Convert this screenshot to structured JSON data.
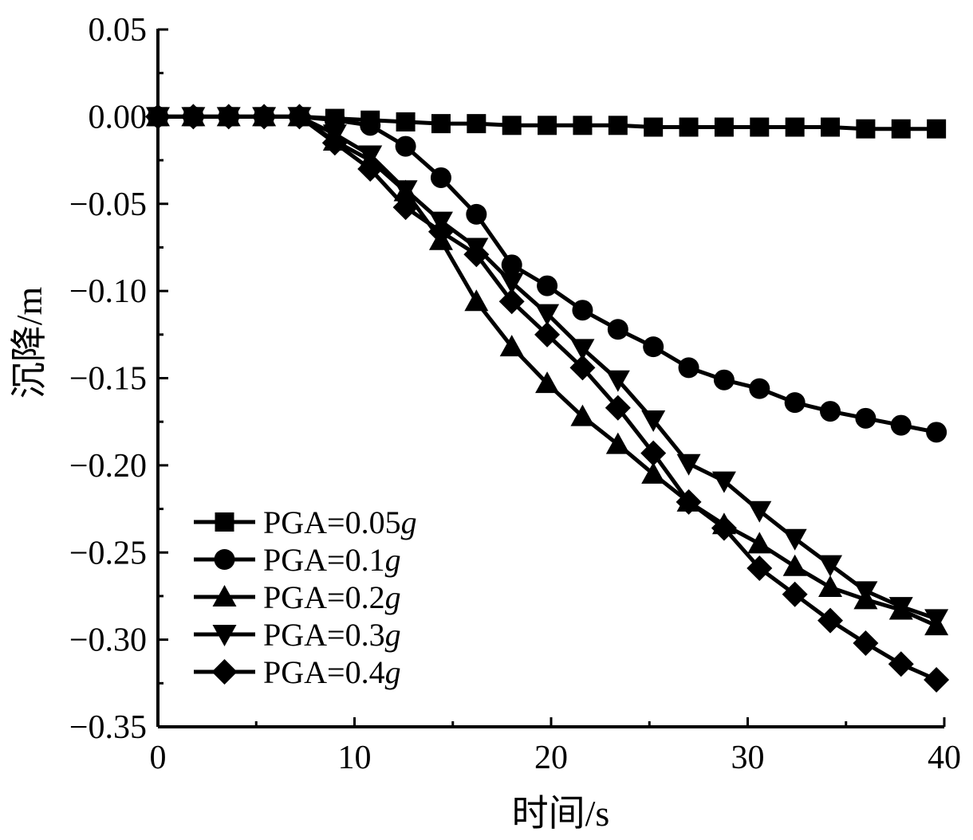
{
  "chart_data": {
    "type": "line",
    "title": "",
    "xlabel": "时间/s",
    "ylabel": "沉降/m",
    "xlim": [
      0,
      40
    ],
    "ylim": [
      -0.35,
      0.05
    ],
    "x_ticks": [
      0,
      10,
      20,
      30,
      40
    ],
    "x_tick_labels": [
      "0",
      "10",
      "20",
      "30",
      "40"
    ],
    "y_ticks": [
      0.05,
      0.0,
      -0.05,
      -0.1,
      -0.15,
      -0.2,
      -0.25,
      -0.3,
      -0.35
    ],
    "y_tick_labels": [
      "0.05",
      "0.00",
      "−0.05",
      "−0.10",
      "−0.15",
      "−0.20",
      "−0.25",
      "−0.30",
      "−0.35"
    ],
    "grid": false,
    "legend_position": "bottom-left",
    "line_color": "#000000",
    "series": [
      {
        "name": "PGA=0.05",
        "name_suffix": "g",
        "marker": "square",
        "x": [
          0,
          1.8,
          3.6,
          5.4,
          7.2,
          9.0,
          10.8,
          12.6,
          14.4,
          16.2,
          18.0,
          19.8,
          21.6,
          23.4,
          25.2,
          27.0,
          28.8,
          30.6,
          32.4,
          34.2,
          36.0,
          37.8,
          39.6
        ],
        "y": [
          0.0,
          0.0,
          0.0,
          0.0,
          0.0,
          -0.001,
          -0.002,
          -0.003,
          -0.004,
          -0.004,
          -0.005,
          -0.005,
          -0.005,
          -0.005,
          -0.006,
          -0.006,
          -0.006,
          -0.006,
          -0.006,
          -0.006,
          -0.007,
          -0.007,
          -0.007
        ]
      },
      {
        "name": "PGA=0.1",
        "name_suffix": "g",
        "marker": "circle",
        "x": [
          0,
          1.8,
          3.6,
          5.4,
          7.2,
          9.0,
          10.8,
          12.6,
          14.4,
          16.2,
          18.0,
          19.8,
          21.6,
          23.4,
          25.2,
          27.0,
          28.8,
          30.6,
          32.4,
          34.2,
          36.0,
          37.8,
          39.6
        ],
        "y": [
          0.0,
          0.0,
          0.0,
          0.0,
          0.0,
          -0.002,
          -0.005,
          -0.017,
          -0.035,
          -0.056,
          -0.085,
          -0.097,
          -0.111,
          -0.122,
          -0.132,
          -0.144,
          -0.151,
          -0.156,
          -0.164,
          -0.169,
          -0.173,
          -0.177,
          -0.181
        ]
      },
      {
        "name": "PGA=0.2",
        "name_suffix": "g",
        "marker": "triangle-up",
        "x": [
          0,
          1.8,
          3.6,
          5.4,
          7.2,
          9.0,
          10.8,
          12.6,
          14.4,
          16.2,
          18.0,
          19.8,
          21.6,
          23.4,
          25.2,
          27.0,
          28.8,
          30.6,
          32.4,
          34.2,
          36.0,
          37.8,
          39.6
        ],
        "y": [
          0.0,
          0.0,
          0.0,
          0.0,
          0.0,
          -0.014,
          -0.025,
          -0.043,
          -0.071,
          -0.106,
          -0.132,
          -0.153,
          -0.172,
          -0.188,
          -0.205,
          -0.221,
          -0.234,
          -0.245,
          -0.258,
          -0.27,
          -0.277,
          -0.283,
          -0.292
        ]
      },
      {
        "name": "PGA=0.3",
        "name_suffix": "g",
        "marker": "triangle-down",
        "x": [
          0,
          1.8,
          3.6,
          5.4,
          7.2,
          9.0,
          10.8,
          12.6,
          14.4,
          16.2,
          18.0,
          19.8,
          21.6,
          23.4,
          25.2,
          27.0,
          28.8,
          30.6,
          32.4,
          34.2,
          36.0,
          37.8,
          39.6
        ],
        "y": [
          0.0,
          0.0,
          0.0,
          0.0,
          0.0,
          -0.01,
          -0.022,
          -0.042,
          -0.06,
          -0.075,
          -0.095,
          -0.113,
          -0.133,
          -0.151,
          -0.174,
          -0.199,
          -0.209,
          -0.226,
          -0.242,
          -0.257,
          -0.272,
          -0.281,
          -0.288
        ]
      },
      {
        "name": "PGA=0.4",
        "name_suffix": "g",
        "marker": "diamond",
        "x": [
          0,
          1.8,
          3.6,
          5.4,
          7.2,
          9.0,
          10.8,
          12.6,
          14.4,
          16.2,
          18.0,
          19.8,
          21.6,
          23.4,
          25.2,
          27.0,
          28.8,
          30.6,
          32.4,
          34.2,
          36.0,
          37.8,
          39.6
        ],
        "y": [
          0.0,
          0.0,
          0.0,
          0.0,
          0.0,
          -0.015,
          -0.03,
          -0.052,
          -0.066,
          -0.079,
          -0.106,
          -0.125,
          -0.144,
          -0.167,
          -0.193,
          -0.221,
          -0.236,
          -0.259,
          -0.274,
          -0.289,
          -0.302,
          -0.314,
          -0.323
        ]
      }
    ]
  }
}
